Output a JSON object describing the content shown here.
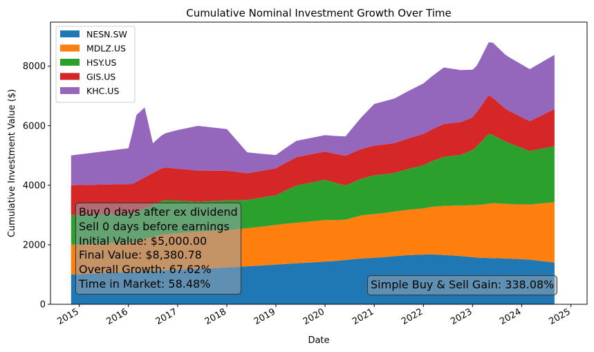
{
  "chart_data": {
    "type": "area",
    "stacked": true,
    "title": "Cumulative Nominal Investment Growth Over Time",
    "xlabel": "Date",
    "ylabel": "Cumulative Investment Value ($)",
    "xlim": [
      "2014-06-01",
      "2025-05-01"
    ],
    "ylim": [
      0,
      9480
    ],
    "yticks": [
      0,
      2000,
      4000,
      6000,
      8000
    ],
    "xticks": [
      "2015",
      "2016",
      "2017",
      "2018",
      "2019",
      "2020",
      "2021",
      "2022",
      "2023",
      "2024",
      "2025"
    ],
    "grid": false,
    "legend": "top-left",
    "series": [
      {
        "name": "NESN.SW",
        "color": "#1f77b4",
        "points": [
          [
            "2014-11-01",
            1000
          ],
          [
            "2018-03-01",
            1250
          ],
          [
            "2018-09-01",
            1300
          ],
          [
            "2019-03-01",
            1350
          ],
          [
            "2019-09-01",
            1400
          ],
          [
            "2020-03-01",
            1450
          ],
          [
            "2020-09-01",
            1530
          ],
          [
            "2021-03-01",
            1580
          ],
          [
            "2021-09-01",
            1650
          ],
          [
            "2022-03-01",
            1680
          ],
          [
            "2022-09-01",
            1630
          ],
          [
            "2023-03-01",
            1560
          ],
          [
            "2023-09-01",
            1540
          ],
          [
            "2024-03-01",
            1500
          ],
          [
            "2024-09-01",
            1400
          ]
        ]
      },
      {
        "name": "MDLZ.US",
        "color": "#ff7f0e",
        "points": [
          [
            "2014-11-01",
            1000
          ],
          [
            "2016-02-01",
            1000
          ],
          [
            "2016-09-01",
            1200
          ],
          [
            "2017-06-01",
            1250
          ],
          [
            "2018-01-01",
            1250
          ],
          [
            "2018-09-01",
            1300
          ],
          [
            "2019-03-01",
            1350
          ],
          [
            "2020-01-01",
            1400
          ],
          [
            "2020-06-01",
            1350
          ],
          [
            "2020-10-01",
            1450
          ],
          [
            "2021-06-01",
            1500
          ],
          [
            "2022-01-01",
            1550
          ],
          [
            "2022-06-01",
            1650
          ],
          [
            "2022-10-01",
            1700
          ],
          [
            "2023-03-01",
            1780
          ],
          [
            "2023-06-01",
            1850
          ],
          [
            "2023-10-01",
            1830
          ],
          [
            "2024-03-01",
            1850
          ],
          [
            "2024-09-01",
            2030
          ]
        ]
      },
      {
        "name": "HSY.US",
        "color": "#2ca02c",
        "points": [
          [
            "2014-11-01",
            1000
          ],
          [
            "2016-02-01",
            950
          ],
          [
            "2016-10-01",
            1150
          ],
          [
            "2017-06-01",
            1000
          ],
          [
            "2018-01-01",
            1000
          ],
          [
            "2018-06-01",
            950
          ],
          [
            "2019-01-01",
            1000
          ],
          [
            "2019-06-01",
            1250
          ],
          [
            "2020-01-01",
            1350
          ],
          [
            "2020-06-01",
            1150
          ],
          [
            "2021-01-01",
            1300
          ],
          [
            "2021-06-01",
            1300
          ],
          [
            "2022-01-01",
            1450
          ],
          [
            "2022-06-01",
            1650
          ],
          [
            "2022-10-01",
            1700
          ],
          [
            "2023-01-01",
            1850
          ],
          [
            "2023-05-01",
            2350
          ],
          [
            "2023-09-01",
            2100
          ],
          [
            "2024-03-01",
            1800
          ],
          [
            "2024-09-01",
            1880
          ]
        ]
      },
      {
        "name": "GIS.US",
        "color": "#d62728",
        "points": [
          [
            "2014-11-01",
            1000
          ],
          [
            "2016-02-01",
            1000
          ],
          [
            "2016-09-01",
            1100
          ],
          [
            "2017-06-01",
            1050
          ],
          [
            "2018-01-01",
            1000
          ],
          [
            "2018-06-01",
            900
          ],
          [
            "2019-01-01",
            900
          ],
          [
            "2019-06-01",
            950
          ],
          [
            "2020-01-01",
            950
          ],
          [
            "2020-06-01",
            1000
          ],
          [
            "2021-01-01",
            1000
          ],
          [
            "2021-06-01",
            1000
          ],
          [
            "2022-01-01",
            1050
          ],
          [
            "2022-06-01",
            1100
          ],
          [
            "2023-01-01",
            1100
          ],
          [
            "2023-05-01",
            1300
          ],
          [
            "2023-09-01",
            1100
          ],
          [
            "2024-03-01",
            1000
          ],
          [
            "2024-09-01",
            1250
          ]
        ]
      },
      {
        "name": "KHC.US",
        "color": "#9467bd",
        "points": [
          [
            "2014-11-01",
            1000
          ],
          [
            "2015-06-01",
            1100
          ],
          [
            "2016-01-01",
            1200
          ],
          [
            "2016-03-01",
            2250
          ],
          [
            "2016-05-01",
            2350
          ],
          [
            "2016-07-01",
            1000
          ],
          [
            "2017-01-01",
            1300
          ],
          [
            "2017-06-01",
            1500
          ],
          [
            "2018-01-01",
            1400
          ],
          [
            "2018-06-01",
            700
          ],
          [
            "2019-01-01",
            450
          ],
          [
            "2019-06-01",
            550
          ],
          [
            "2020-01-01",
            550
          ],
          [
            "2020-06-01",
            650
          ],
          [
            "2021-01-01",
            1400
          ],
          [
            "2021-06-01",
            1500
          ],
          [
            "2022-01-01",
            1700
          ],
          [
            "2022-06-01",
            1900
          ],
          [
            "2022-10-01",
            1750
          ],
          [
            "2023-02-01",
            1550
          ],
          [
            "2023-06-01",
            1850
          ],
          [
            "2023-10-01",
            1800
          ],
          [
            "2024-03-01",
            1750
          ],
          [
            "2024-09-01",
            1820
          ]
        ]
      }
    ],
    "annotations": {
      "strategy_box": [
        "Buy 0 days after ex dividend",
        "Sell 0 days before earnings",
        "Initial Value: $5,000.00",
        "Final Value: $8,380.78",
        "Overall Growth: 67.62%",
        "Time in Market: 58.48%"
      ],
      "simple_box": "Simple Buy & Sell Gain: 338.08%"
    }
  }
}
